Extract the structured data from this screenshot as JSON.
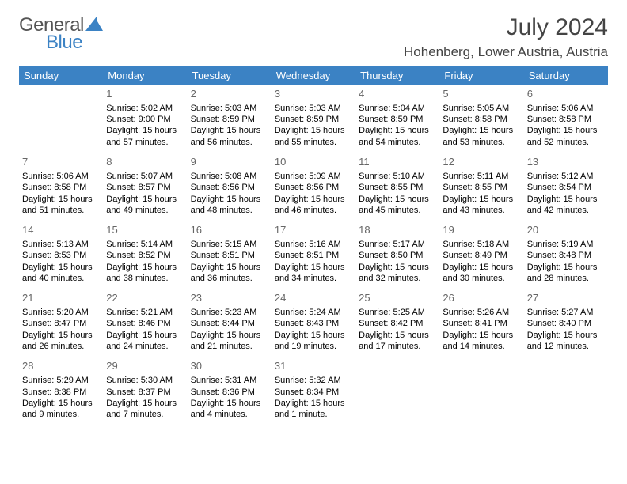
{
  "brand": {
    "word1": "General",
    "word2": "Blue"
  },
  "title": "July 2024",
  "location": "Hohenberg, Lower Austria, Austria",
  "colors": {
    "header_bg": "#3b82c4",
    "header_fg": "#ffffff",
    "border": "#3b82c4",
    "text": "#000000",
    "daynum": "#666666",
    "background": "#ffffff"
  },
  "weekdays": [
    "Sunday",
    "Monday",
    "Tuesday",
    "Wednesday",
    "Thursday",
    "Friday",
    "Saturday"
  ],
  "cells": [
    {
      "day": "",
      "sunrise": "",
      "sunset": "",
      "daylight": ""
    },
    {
      "day": "1",
      "sunrise": "Sunrise: 5:02 AM",
      "sunset": "Sunset: 9:00 PM",
      "daylight": "Daylight: 15 hours and 57 minutes."
    },
    {
      "day": "2",
      "sunrise": "Sunrise: 5:03 AM",
      "sunset": "Sunset: 8:59 PM",
      "daylight": "Daylight: 15 hours and 56 minutes."
    },
    {
      "day": "3",
      "sunrise": "Sunrise: 5:03 AM",
      "sunset": "Sunset: 8:59 PM",
      "daylight": "Daylight: 15 hours and 55 minutes."
    },
    {
      "day": "4",
      "sunrise": "Sunrise: 5:04 AM",
      "sunset": "Sunset: 8:59 PM",
      "daylight": "Daylight: 15 hours and 54 minutes."
    },
    {
      "day": "5",
      "sunrise": "Sunrise: 5:05 AM",
      "sunset": "Sunset: 8:58 PM",
      "daylight": "Daylight: 15 hours and 53 minutes."
    },
    {
      "day": "6",
      "sunrise": "Sunrise: 5:06 AM",
      "sunset": "Sunset: 8:58 PM",
      "daylight": "Daylight: 15 hours and 52 minutes."
    },
    {
      "day": "7",
      "sunrise": "Sunrise: 5:06 AM",
      "sunset": "Sunset: 8:58 PM",
      "daylight": "Daylight: 15 hours and 51 minutes."
    },
    {
      "day": "8",
      "sunrise": "Sunrise: 5:07 AM",
      "sunset": "Sunset: 8:57 PM",
      "daylight": "Daylight: 15 hours and 49 minutes."
    },
    {
      "day": "9",
      "sunrise": "Sunrise: 5:08 AM",
      "sunset": "Sunset: 8:56 PM",
      "daylight": "Daylight: 15 hours and 48 minutes."
    },
    {
      "day": "10",
      "sunrise": "Sunrise: 5:09 AM",
      "sunset": "Sunset: 8:56 PM",
      "daylight": "Daylight: 15 hours and 46 minutes."
    },
    {
      "day": "11",
      "sunrise": "Sunrise: 5:10 AM",
      "sunset": "Sunset: 8:55 PM",
      "daylight": "Daylight: 15 hours and 45 minutes."
    },
    {
      "day": "12",
      "sunrise": "Sunrise: 5:11 AM",
      "sunset": "Sunset: 8:55 PM",
      "daylight": "Daylight: 15 hours and 43 minutes."
    },
    {
      "day": "13",
      "sunrise": "Sunrise: 5:12 AM",
      "sunset": "Sunset: 8:54 PM",
      "daylight": "Daylight: 15 hours and 42 minutes."
    },
    {
      "day": "14",
      "sunrise": "Sunrise: 5:13 AM",
      "sunset": "Sunset: 8:53 PM",
      "daylight": "Daylight: 15 hours and 40 minutes."
    },
    {
      "day": "15",
      "sunrise": "Sunrise: 5:14 AM",
      "sunset": "Sunset: 8:52 PM",
      "daylight": "Daylight: 15 hours and 38 minutes."
    },
    {
      "day": "16",
      "sunrise": "Sunrise: 5:15 AM",
      "sunset": "Sunset: 8:51 PM",
      "daylight": "Daylight: 15 hours and 36 minutes."
    },
    {
      "day": "17",
      "sunrise": "Sunrise: 5:16 AM",
      "sunset": "Sunset: 8:51 PM",
      "daylight": "Daylight: 15 hours and 34 minutes."
    },
    {
      "day": "18",
      "sunrise": "Sunrise: 5:17 AM",
      "sunset": "Sunset: 8:50 PM",
      "daylight": "Daylight: 15 hours and 32 minutes."
    },
    {
      "day": "19",
      "sunrise": "Sunrise: 5:18 AM",
      "sunset": "Sunset: 8:49 PM",
      "daylight": "Daylight: 15 hours and 30 minutes."
    },
    {
      "day": "20",
      "sunrise": "Sunrise: 5:19 AM",
      "sunset": "Sunset: 8:48 PM",
      "daylight": "Daylight: 15 hours and 28 minutes."
    },
    {
      "day": "21",
      "sunrise": "Sunrise: 5:20 AM",
      "sunset": "Sunset: 8:47 PM",
      "daylight": "Daylight: 15 hours and 26 minutes."
    },
    {
      "day": "22",
      "sunrise": "Sunrise: 5:21 AM",
      "sunset": "Sunset: 8:46 PM",
      "daylight": "Daylight: 15 hours and 24 minutes."
    },
    {
      "day": "23",
      "sunrise": "Sunrise: 5:23 AM",
      "sunset": "Sunset: 8:44 PM",
      "daylight": "Daylight: 15 hours and 21 minutes."
    },
    {
      "day": "24",
      "sunrise": "Sunrise: 5:24 AM",
      "sunset": "Sunset: 8:43 PM",
      "daylight": "Daylight: 15 hours and 19 minutes."
    },
    {
      "day": "25",
      "sunrise": "Sunrise: 5:25 AM",
      "sunset": "Sunset: 8:42 PM",
      "daylight": "Daylight: 15 hours and 17 minutes."
    },
    {
      "day": "26",
      "sunrise": "Sunrise: 5:26 AM",
      "sunset": "Sunset: 8:41 PM",
      "daylight": "Daylight: 15 hours and 14 minutes."
    },
    {
      "day": "27",
      "sunrise": "Sunrise: 5:27 AM",
      "sunset": "Sunset: 8:40 PM",
      "daylight": "Daylight: 15 hours and 12 minutes."
    },
    {
      "day": "28",
      "sunrise": "Sunrise: 5:29 AM",
      "sunset": "Sunset: 8:38 PM",
      "daylight": "Daylight: 15 hours and 9 minutes."
    },
    {
      "day": "29",
      "sunrise": "Sunrise: 5:30 AM",
      "sunset": "Sunset: 8:37 PM",
      "daylight": "Daylight: 15 hours and 7 minutes."
    },
    {
      "day": "30",
      "sunrise": "Sunrise: 5:31 AM",
      "sunset": "Sunset: 8:36 PM",
      "daylight": "Daylight: 15 hours and 4 minutes."
    },
    {
      "day": "31",
      "sunrise": "Sunrise: 5:32 AM",
      "sunset": "Sunset: 8:34 PM",
      "daylight": "Daylight: 15 hours and 1 minute."
    },
    {
      "day": "",
      "sunrise": "",
      "sunset": "",
      "daylight": ""
    },
    {
      "day": "",
      "sunrise": "",
      "sunset": "",
      "daylight": ""
    },
    {
      "day": "",
      "sunrise": "",
      "sunset": "",
      "daylight": ""
    }
  ]
}
